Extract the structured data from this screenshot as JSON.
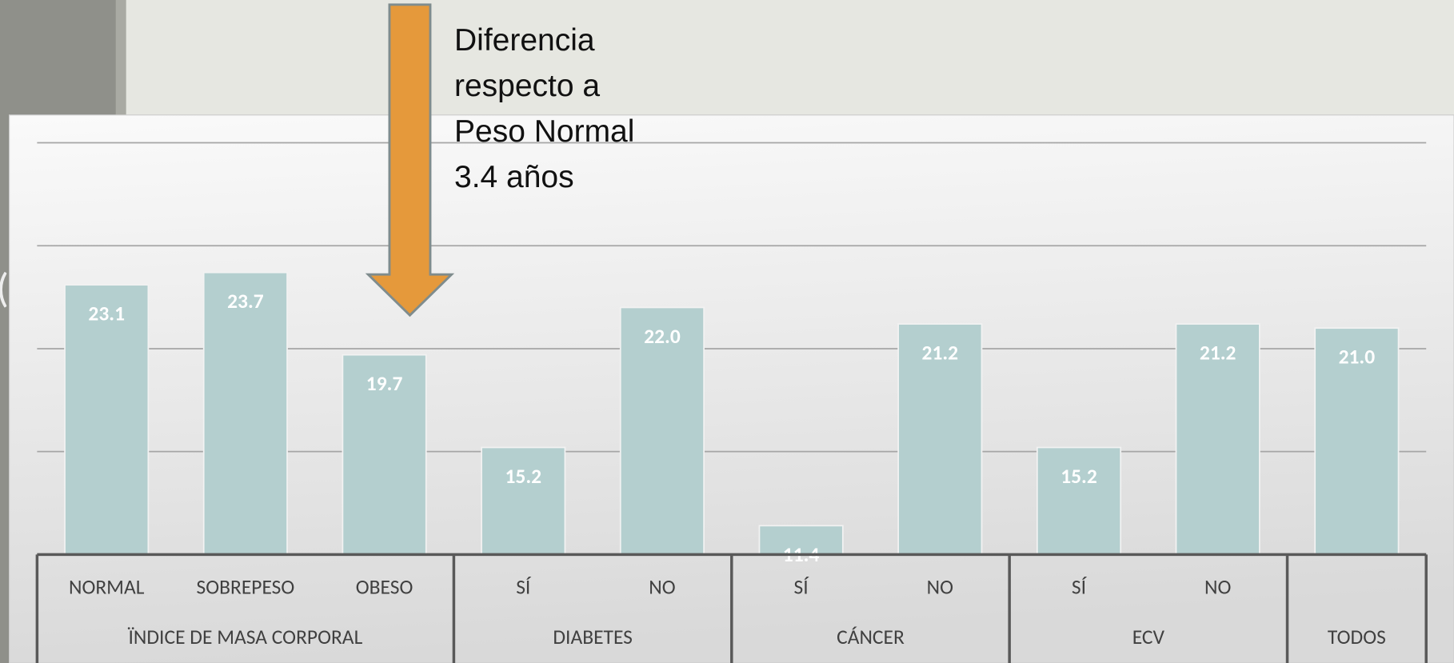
{
  "background_fragment": "(",
  "chart_data": {
    "type": "bar",
    "annotation": "Diferencia respecto a Peso Normal 3.4 años",
    "color": "#b4cfcf",
    "ylim": [
      10,
      30
    ],
    "yticks": [
      10,
      15,
      20,
      25,
      30
    ],
    "grid": true,
    "groups": [
      {
        "name": "ÏNDICE DE MASA CORPORAL",
        "categories": [
          "NORMAL",
          "SOBREPESO",
          "OBESO"
        ],
        "values": [
          23.1,
          23.7,
          19.7
        ],
        "value_labels": [
          "23.1",
          "23.7",
          "19.7"
        ]
      },
      {
        "name": "DIABETES",
        "categories": [
          "SÍ",
          "NO"
        ],
        "values": [
          15.2,
          22.0
        ],
        "value_labels": [
          "15.2",
          "22.0"
        ]
      },
      {
        "name": "CÁNCER",
        "categories": [
          "SÍ",
          "NO"
        ],
        "values": [
          11.4,
          21.2
        ],
        "value_labels": [
          "11.4",
          "21.2"
        ]
      },
      {
        "name": "ECV",
        "categories": [
          "SÍ",
          "NO"
        ],
        "values": [
          15.2,
          21.2
        ],
        "value_labels": [
          "15.2",
          "21.2"
        ]
      },
      {
        "name": "TODOS",
        "categories": [
          null
        ],
        "values": [
          21.0
        ],
        "value_labels": [
          "21.0"
        ]
      }
    ]
  }
}
